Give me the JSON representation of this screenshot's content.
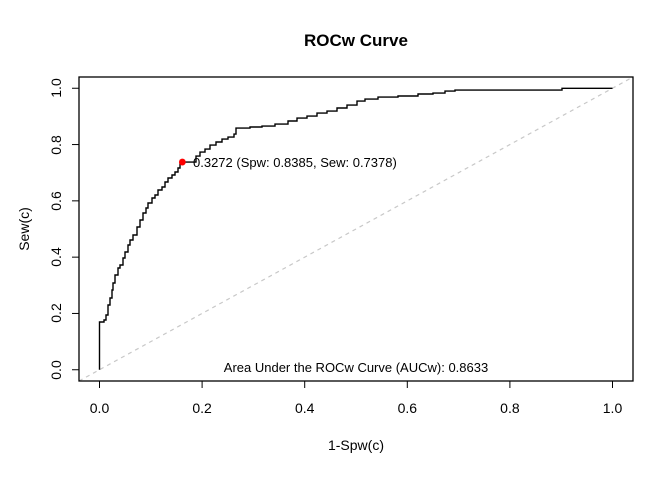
{
  "title": "ROCw Curve",
  "axes": {
    "x": {
      "label": "1-Spw(c)",
      "ticks": [
        "0.0",
        "0.2",
        "0.4",
        "0.6",
        "0.8",
        "1.0"
      ]
    },
    "y": {
      "label": "Sew(c)",
      "ticks": [
        "0.0",
        "0.2",
        "0.4",
        "0.6",
        "0.8",
        "1.0"
      ]
    }
  },
  "annotations": {
    "cutpoint_label": "0.3272 (Spw: 0.8385, Sew: 0.7378)",
    "auc_label": "Area Under the ROCw Curve (AUCw): 0.8633"
  },
  "colors": {
    "curve": "#000000",
    "diagonal": "#c8c8c8",
    "marker": "#ff0000",
    "box": "#000000"
  },
  "chart_data": {
    "type": "line",
    "title": "ROCw Curve",
    "xlabel": "1-Spw(c)",
    "ylabel": "Sew(c)",
    "xlim": [
      0,
      1
    ],
    "ylim": [
      0,
      1
    ],
    "grid": false,
    "legend": "none",
    "auc": 0.8633,
    "marker": {
      "x": 0.1615,
      "y": 0.7378,
      "cutoff": 0.3272,
      "spw": 0.8385,
      "sew": 0.7378
    },
    "series": [
      {
        "name": "ROCw step curve",
        "style": "step-solid-black",
        "points": [
          [
            0,
            0
          ],
          [
            0,
            0.1696
          ],
          [
            0.0088,
            0.1767
          ],
          [
            0.0127,
            0.1945
          ],
          [
            0.0166,
            0.23
          ],
          [
            0.0205,
            0.2549
          ],
          [
            0.0244,
            0.2833
          ],
          [
            0.0263,
            0.3082
          ],
          [
            0.0302,
            0.3366
          ],
          [
            0.0361,
            0.3615
          ],
          [
            0.04,
            0.3721
          ],
          [
            0.0458,
            0.397
          ],
          [
            0.0497,
            0.4183
          ],
          [
            0.0556,
            0.4432
          ],
          [
            0.0595,
            0.4609
          ],
          [
            0.0653,
            0.4787
          ],
          [
            0.0731,
            0.5071
          ],
          [
            0.0789,
            0.532
          ],
          [
            0.0848,
            0.5568
          ],
          [
            0.0906,
            0.5746
          ],
          [
            0.0945,
            0.5924
          ],
          [
            0.1023,
            0.6101
          ],
          [
            0.1082,
            0.6208
          ],
          [
            0.114,
            0.6385
          ],
          [
            0.1218,
            0.6492
          ],
          [
            0.1277,
            0.667
          ],
          [
            0.1335,
            0.6812
          ],
          [
            0.1413,
            0.6918
          ],
          [
            0.1472,
            0.7025
          ],
          [
            0.153,
            0.7167
          ],
          [
            0.1569,
            0.7309
          ],
          [
            0.1615,
            0.7378
          ],
          [
            0.1803,
            0.7378
          ],
          [
            0.1881,
            0.7591
          ],
          [
            0.1959,
            0.7733
          ],
          [
            0.2056,
            0.784
          ],
          [
            0.2154,
            0.7982
          ],
          [
            0.2271,
            0.8089
          ],
          [
            0.2388,
            0.8195
          ],
          [
            0.2505,
            0.8266
          ],
          [
            0.2622,
            0.8373
          ],
          [
            0.2661,
            0.8586
          ],
          [
            0.2934,
            0.8622
          ],
          [
            0.3168,
            0.8657
          ],
          [
            0.3421,
            0.8728
          ],
          [
            0.3675,
            0.8835
          ],
          [
            0.385,
            0.8941
          ],
          [
            0.4045,
            0.9012
          ],
          [
            0.424,
            0.9119
          ],
          [
            0.4435,
            0.919
          ],
          [
            0.463,
            0.9297
          ],
          [
            0.4825,
            0.9403
          ],
          [
            0.5019,
            0.9545
          ],
          [
            0.5175,
            0.9616
          ],
          [
            0.5429,
            0.9687
          ],
          [
            0.5819,
            0.9723
          ],
          [
            0.6209,
            0.9794
          ],
          [
            0.6501,
            0.9829
          ],
          [
            0.6735,
            0.99
          ],
          [
            0.693,
            0.9936
          ],
          [
            0.9016,
            1
          ],
          [
            1,
            1
          ]
        ]
      },
      {
        "name": "chance diagonal",
        "style": "dashed-gray",
        "points": [
          [
            0,
            0
          ],
          [
            1,
            1
          ]
        ]
      }
    ]
  }
}
